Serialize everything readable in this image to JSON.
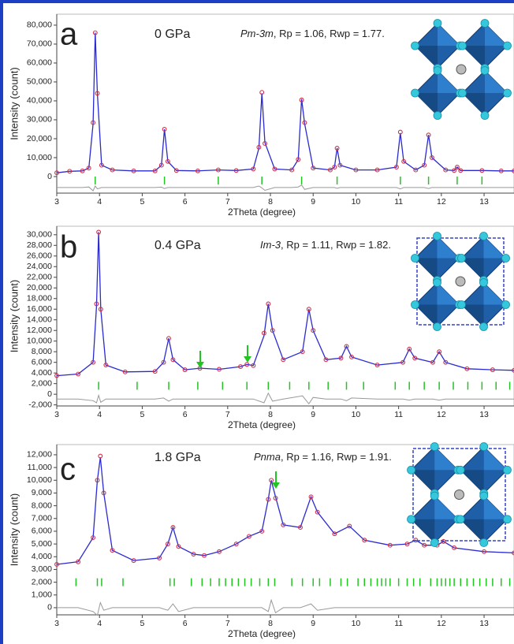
{
  "chart_data": [
    {
      "type": "line",
      "panel_label": "a",
      "pressure": "0 GPa",
      "space_group": "Pm-3m",
      "fit": ", Rp = 1.06, Rwp = 1.77.",
      "x_label": "2Theta (degree)",
      "y_label": "Intensity (count)",
      "xlim": [
        3,
        13.7
      ],
      "xticks": [
        3,
        4,
        5,
        6,
        7,
        8,
        9,
        10,
        11,
        12,
        13
      ],
      "ylim": [
        -8750,
        85800
      ],
      "yticks": [
        0,
        {
          "value": 10000,
          "label": "10,000"
        },
        {
          "value": 20000,
          "label": "20,000"
        },
        {
          "value": 30000,
          "label": "30,000"
        },
        {
          "value": 40000,
          "label": "40,000"
        },
        {
          "value": 50000,
          "label": "50,000"
        },
        {
          "value": 60000,
          "label": "60,000"
        },
        {
          "value": 70000,
          "label": "70,000"
        },
        {
          "value": 80000,
          "label": "80,000"
        }
      ],
      "x": [
        3.0,
        3.3,
        3.6,
        3.75,
        3.85,
        3.9,
        3.95,
        4.05,
        4.3,
        4.8,
        5.3,
        5.45,
        5.52,
        5.6,
        5.8,
        6.3,
        6.78,
        7.2,
        7.6,
        7.73,
        7.8,
        7.87,
        8.1,
        8.5,
        8.65,
        8.73,
        8.8,
        9.0,
        9.4,
        9.5,
        9.56,
        9.63,
        10.0,
        10.5,
        10.95,
        11.04,
        11.12,
        11.4,
        11.6,
        11.7,
        11.78,
        12.1,
        12.3,
        12.37,
        12.45,
        12.95,
        13.4,
        13.7
      ],
      "series": [
        {
          "style": "markers",
          "color": "#d0304a",
          "values": [
            2000,
            2800,
            3000,
            4500,
            28500,
            76000,
            44000,
            6000,
            3500,
            3000,
            3000,
            6000,
            25000,
            8000,
            3200,
            3000,
            3500,
            3200,
            4000,
            15500,
            44500,
            17500,
            4000,
            3500,
            9000,
            40500,
            28500,
            4500,
            3500,
            5000,
            15000,
            6000,
            3500,
            3500,
            5000,
            23500,
            8000,
            3500,
            6000,
            22000,
            10000,
            3500,
            3200,
            5000,
            3200,
            3200,
            3000,
            3000
          ]
        },
        {
          "style": "line",
          "color": "#2a2ad0",
          "values": [
            2000,
            2800,
            3000,
            4500,
            28000,
            76000,
            44000,
            6000,
            3500,
            3000,
            3000,
            6000,
            25000,
            8000,
            3200,
            3000,
            3500,
            3200,
            4000,
            15000,
            44000,
            18000,
            4000,
            3500,
            9000,
            41000,
            28000,
            4500,
            3500,
            5000,
            15000,
            6000,
            3500,
            3500,
            5000,
            23000,
            8000,
            3500,
            6000,
            22000,
            10000,
            3500,
            3200,
            5000,
            3200,
            3200,
            3000,
            3000
          ]
        },
        {
          "style": "line",
          "color": "#999999",
          "values": [
            -5800,
            -5800,
            -5800,
            -5500,
            -7500,
            -5000,
            -6500,
            -5800,
            -5800,
            -5800,
            -5800,
            -5600,
            -6300,
            -5800,
            -5800,
            -5800,
            -5800,
            -5800,
            -5800,
            -5000,
            -6000,
            -7300,
            -5800,
            -5800,
            -5500,
            -4500,
            -6800,
            -5800,
            -5800,
            -5800,
            -6200,
            -5800,
            -5800,
            -5800,
            -5800,
            -6500,
            -5800,
            -5800,
            -5800,
            -6300,
            -5800,
            -5800,
            -5800,
            -5800,
            -5800,
            -5800,
            -5800,
            -5800
          ]
        }
      ],
      "bragg_ticks": {
        "color": "#22c422",
        "y": -2100,
        "x": [
          3.9,
          5.52,
          6.78,
          7.8,
          8.73,
          9.56,
          11.04,
          11.7,
          12.37,
          12.95
        ]
      }
    },
    {
      "type": "line",
      "panel_label": "b",
      "pressure": "0.4 GPa",
      "space_group": "Im-3",
      "fit": ", Rp = 1.11, Rwp = 1.82.",
      "x_label": "2Theta (degree)",
      "y_label": "Intensity (count)",
      "xlim": [
        3,
        13.7
      ],
      "xticks": [
        3,
        4,
        5,
        6,
        7,
        8,
        9,
        10,
        11,
        12,
        13
      ],
      "ylim": [
        -2200,
        31600
      ],
      "yticks": [
        {
          "value": -2000,
          "label": "-2,000"
        },
        0,
        {
          "value": 2000,
          "label": "2,000"
        },
        {
          "value": 4000,
          "label": "4,000"
        },
        {
          "value": 6000,
          "label": "6,000"
        },
        {
          "value": 8000,
          "label": "8,000"
        },
        {
          "value": 10000,
          "label": "10,000"
        },
        {
          "value": 12000,
          "label": "12,000"
        },
        {
          "value": 14000,
          "label": "14,000"
        },
        {
          "value": 16000,
          "label": "16,000"
        },
        {
          "value": 18000,
          "label": "18,000"
        },
        {
          "value": 20000,
          "label": "20,000"
        },
        {
          "value": 22000,
          "label": "22,000"
        },
        {
          "value": 24000,
          "label": "24,000"
        },
        {
          "value": 26000,
          "label": "26,000"
        },
        {
          "value": 28000,
          "label": "28,000"
        },
        {
          "value": 30000,
          "label": "30,000"
        }
      ],
      "x": [
        3.0,
        3.5,
        3.85,
        3.93,
        3.98,
        4.03,
        4.15,
        4.6,
        5.3,
        5.5,
        5.62,
        5.72,
        6.0,
        6.35,
        6.8,
        7.3,
        7.45,
        7.6,
        7.85,
        7.95,
        8.05,
        8.3,
        8.75,
        8.9,
        9.0,
        9.3,
        9.65,
        9.78,
        9.9,
        10.5,
        11.1,
        11.25,
        11.38,
        11.8,
        11.95,
        12.1,
        12.6,
        13.2,
        13.7
      ],
      "series": [
        {
          "style": "markers",
          "color": "#d0304a",
          "values": [
            3500,
            3800,
            6000,
            17000,
            30500,
            16000,
            5500,
            4200,
            4300,
            6000,
            10500,
            6500,
            4600,
            4900,
            4700,
            5200,
            5600,
            5400,
            11500,
            17000,
            12000,
            6500,
            8000,
            16000,
            12000,
            6500,
            6800,
            9000,
            7000,
            5500,
            6000,
            8500,
            6800,
            6000,
            8000,
            6000,
            4800,
            4600,
            4500
          ]
        },
        {
          "style": "line",
          "color": "#2a2ad0",
          "values": [
            3500,
            3800,
            6000,
            16500,
            30500,
            16000,
            5500,
            4200,
            4300,
            6000,
            10500,
            6500,
            4600,
            4900,
            4700,
            5200,
            5600,
            5400,
            11000,
            17000,
            12000,
            6500,
            8000,
            16000,
            12000,
            6500,
            6800,
            9000,
            7000,
            5500,
            6000,
            8500,
            6800,
            6000,
            8000,
            6000,
            4800,
            4600,
            4500
          ]
        },
        {
          "style": "line",
          "color": "#999999",
          "values": [
            -900,
            -900,
            -1200,
            -1600,
            -200,
            -1500,
            -900,
            -900,
            -900,
            -700,
            -1300,
            -900,
            -900,
            -900,
            -900,
            -900,
            -900,
            -900,
            -1600,
            200,
            -1300,
            -900,
            -300,
            -1800,
            -600,
            -900,
            -900,
            -1200,
            -700,
            -900,
            -900,
            -1100,
            -900,
            -900,
            -1100,
            -900,
            -900,
            -900,
            -900
          ]
        }
      ],
      "bragg_ticks": {
        "color": "#22c422",
        "y": 1600,
        "x": [
          3.98,
          4.88,
          5.62,
          6.3,
          6.88,
          7.45,
          7.95,
          8.45,
          8.9,
          9.35,
          9.78,
          10.18,
          10.92,
          11.25,
          11.6,
          11.95,
          12.28,
          12.62,
          12.95,
          13.28,
          13.6
        ]
      }
    },
    {
      "type": "line",
      "panel_label": "c",
      "pressure": "1.8 GPa",
      "space_group": "Pnma",
      "fit": ", Rp = 1.16, Rwp = 1.91.",
      "x_label": "2Theta (degree)",
      "y_label": "Intensity (count)",
      "xlim": [
        3,
        13.7
      ],
      "xticks": [
        3,
        4,
        5,
        6,
        7,
        8,
        9,
        10,
        11,
        12,
        13
      ],
      "ylim": [
        -560,
        12800
      ],
      "yticks": [
        0,
        {
          "value": 1000,
          "label": "1,000"
        },
        {
          "value": 2000,
          "label": "2,000"
        },
        {
          "value": 3000,
          "label": "3,000"
        },
        {
          "value": 4000,
          "label": "4,000"
        },
        {
          "value": 5000,
          "label": "5,000"
        },
        {
          "value": 6000,
          "label": "6,000"
        },
        {
          "value": 7000,
          "label": "7,000"
        },
        {
          "value": 8000,
          "label": "8,000"
        },
        {
          "value": 9000,
          "label": "9,000"
        },
        {
          "value": 10000,
          "label": "10,000"
        },
        {
          "value": 11000,
          "label": "11,000"
        },
        {
          "value": 12000,
          "label": "12,000"
        }
      ],
      "x": [
        3.0,
        3.5,
        3.85,
        3.95,
        4.02,
        4.1,
        4.3,
        4.8,
        5.4,
        5.6,
        5.72,
        5.85,
        6.2,
        6.45,
        6.8,
        7.2,
        7.5,
        7.8,
        7.95,
        8.02,
        8.12,
        8.3,
        8.7,
        8.95,
        9.1,
        9.5,
        9.85,
        10.2,
        10.8,
        11.2,
        11.4,
        11.6,
        11.9,
        12.05,
        12.3,
        13.0,
        13.7
      ],
      "series": [
        {
          "style": "markers",
          "color": "#d0304a",
          "values": [
            3400,
            3600,
            5500,
            10000,
            11900,
            9000,
            4500,
            3700,
            3900,
            5000,
            6300,
            4800,
            4200,
            4100,
            4400,
            5000,
            5600,
            6000,
            8500,
            10000,
            8600,
            6500,
            6300,
            8700,
            7500,
            5800,
            6400,
            5300,
            4900,
            5000,
            5300,
            4900,
            4900,
            5200,
            4700,
            4400,
            4300
          ]
        },
        {
          "style": "line",
          "color": "#2a2ad0",
          "values": [
            3400,
            3600,
            5500,
            10000,
            11800,
            9000,
            4500,
            3700,
            3900,
            5000,
            6300,
            4800,
            4200,
            4100,
            4400,
            5000,
            5600,
            6000,
            8500,
            10000,
            8700,
            6500,
            6300,
            8700,
            7500,
            5800,
            6400,
            5300,
            4900,
            5000,
            5300,
            4900,
            4900,
            5200,
            4700,
            4400,
            4300
          ]
        },
        {
          "style": "line",
          "color": "#999999",
          "values": [
            0,
            0,
            -300,
            -600,
            400,
            -200,
            0,
            0,
            0,
            -200,
            300,
            -300,
            0,
            0,
            0,
            0,
            0,
            0,
            -300,
            600,
            -400,
            0,
            0,
            300,
            -200,
            0,
            0,
            0,
            0,
            0,
            0,
            0,
            0,
            0,
            0,
            0,
            0
          ]
        }
      ],
      "bragg_ticks": {
        "color": "#22c422",
        "y": 2000,
        "x": [
          3.45,
          3.95,
          4.05,
          4.55,
          5.65,
          5.75,
          6.15,
          6.4,
          6.6,
          6.8,
          6.95,
          7.1,
          7.25,
          7.4,
          7.55,
          7.75,
          7.95,
          8.1,
          8.5,
          8.75,
          9.0,
          9.15,
          9.4,
          9.65,
          9.8,
          10.05,
          10.2,
          10.35,
          10.5,
          10.6,
          10.7,
          10.8,
          11.0,
          11.2,
          11.35,
          11.5,
          11.75,
          11.9,
          12.0,
          12.1,
          12.2,
          12.3,
          12.45,
          12.6,
          12.75,
          12.9,
          13.05,
          13.2,
          13.4,
          13.6
        ]
      }
    }
  ]
}
